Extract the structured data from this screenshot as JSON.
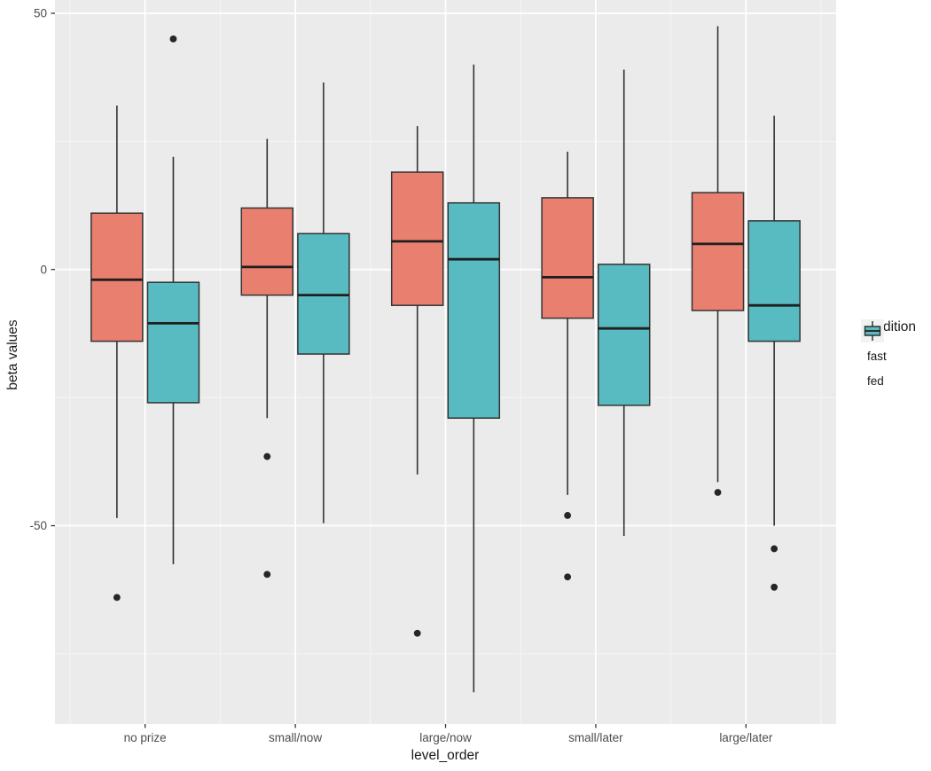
{
  "chart_data": {
    "type": "boxplot",
    "title": "",
    "xlabel": "level_order",
    "ylabel": "beta values",
    "categories": [
      "no prize",
      "small/now",
      "large/now",
      "small/later",
      "large/later"
    ],
    "y_ticks_major": [
      50,
      0,
      -50
    ],
    "y_ticks_minor": [
      25,
      -25,
      -75
    ],
    "ylim": [
      -88.7,
      52.6
    ],
    "grid": true,
    "legend": {
      "title": "condition",
      "position": "right"
    },
    "colors": {
      "panel_background": "#EBEBEB",
      "gridline_major": "#FFFFFF",
      "gridline_minor": "#F5F5F5",
      "box_outline": "#333333",
      "median_line": "#1F1F1F",
      "outlier_dot": "#262626",
      "tick_mark": "#333333",
      "tick_label": "#4D4D4D",
      "legend_key_background": "#F2F2F2"
    },
    "series": [
      {
        "name": "fast",
        "color": "#E9806F",
        "boxes": [
          {
            "category": "no prize",
            "whisker_low": -48.5,
            "q1": -14,
            "median": -2,
            "q3": 11,
            "whisker_high": 32,
            "outliers": [
              -64
            ]
          },
          {
            "category": "small/now",
            "whisker_low": -29,
            "q1": -5,
            "median": 0.5,
            "q3": 12,
            "whisker_high": 25.5,
            "outliers": [
              -36.5,
              -59.5
            ]
          },
          {
            "category": "large/now",
            "whisker_low": -40,
            "q1": -7,
            "median": 5.5,
            "q3": 19,
            "whisker_high": 28,
            "outliers": [
              -71
            ]
          },
          {
            "category": "small/later",
            "whisker_low": -44,
            "q1": -9.5,
            "median": -1.5,
            "q3": 14,
            "whisker_high": 23,
            "outliers": [
              -48,
              -60
            ]
          },
          {
            "category": "large/later",
            "whisker_low": -41.5,
            "q1": -8,
            "median": 5,
            "q3": 15,
            "whisker_high": 47.5,
            "outliers": [
              -43.5
            ]
          }
        ]
      },
      {
        "name": "fed",
        "color": "#57BBC1",
        "boxes": [
          {
            "category": "no prize",
            "whisker_low": -57.5,
            "q1": -26,
            "median": -10.5,
            "q3": -2.5,
            "whisker_high": 22,
            "outliers": [
              45
            ]
          },
          {
            "category": "small/now",
            "whisker_low": -49.5,
            "q1": -16.5,
            "median": -5,
            "q3": 7,
            "whisker_high": 36.5,
            "outliers": []
          },
          {
            "category": "large/now",
            "whisker_low": -82.5,
            "q1": -29,
            "median": 2,
            "q3": 13,
            "whisker_high": 40,
            "outliers": []
          },
          {
            "category": "small/later",
            "whisker_low": -52,
            "q1": -26.5,
            "median": -11.5,
            "q3": 1,
            "whisker_high": 39,
            "outliers": []
          },
          {
            "category": "large/later",
            "whisker_low": -50,
            "q1": -14,
            "median": -7,
            "q3": 9.5,
            "whisker_high": 30,
            "outliers": [
              -54.5,
              -62
            ]
          }
        ]
      }
    ]
  }
}
